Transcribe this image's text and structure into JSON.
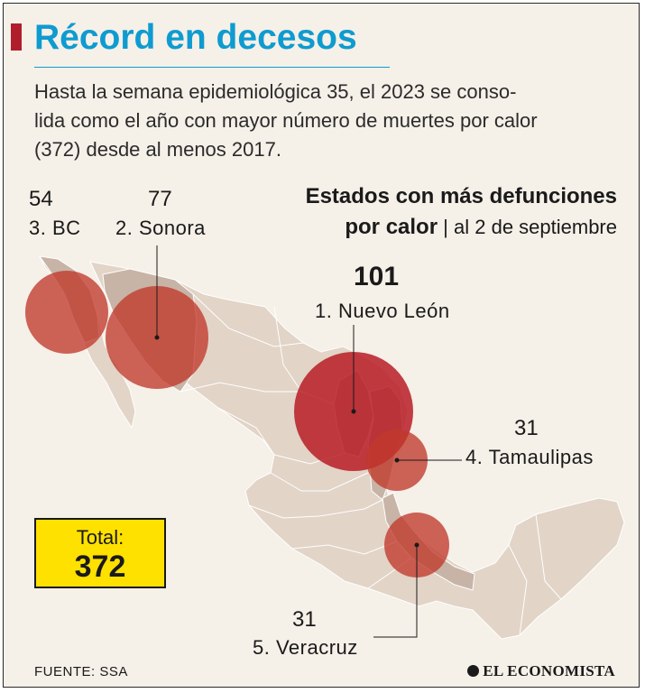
{
  "header": {
    "title": "Récord en decesos",
    "intro_lines": [
      "Hasta la semana epidemiológica 35, el 2023 se conso-",
      "lida como el año con mayor número de muertes por calor",
      "(372) desde al menos 2017."
    ]
  },
  "subtitle": {
    "line1": "Estados con más defunciones",
    "line2_bold": "por calor",
    "line2_rest": " | al 2 de septiembre"
  },
  "states": [
    {
      "rank_label": "1. Nuevo León",
      "deaths": 101
    },
    {
      "rank_label": "2. Sonora",
      "deaths": 77
    },
    {
      "rank_label": "3. BC",
      "deaths": 54
    },
    {
      "rank_label": "4. Tamaulipas",
      "deaths": 31
    },
    {
      "rank_label": "5. Veracruz",
      "deaths": 31
    }
  ],
  "total": {
    "label": "Total:",
    "value": "372"
  },
  "footer": {
    "source": "FUENTE: SSA",
    "brand": "EL ECONOMISTA"
  },
  "colors": {
    "title": "#0e9bd0",
    "accent": "#b01e2c",
    "map_land": "#e2d4c7",
    "highlight_state": "#c8b4a6",
    "bubble": "#c0392b",
    "bubble_largest": "#b71c26",
    "total_box": "#ffe100"
  }
}
